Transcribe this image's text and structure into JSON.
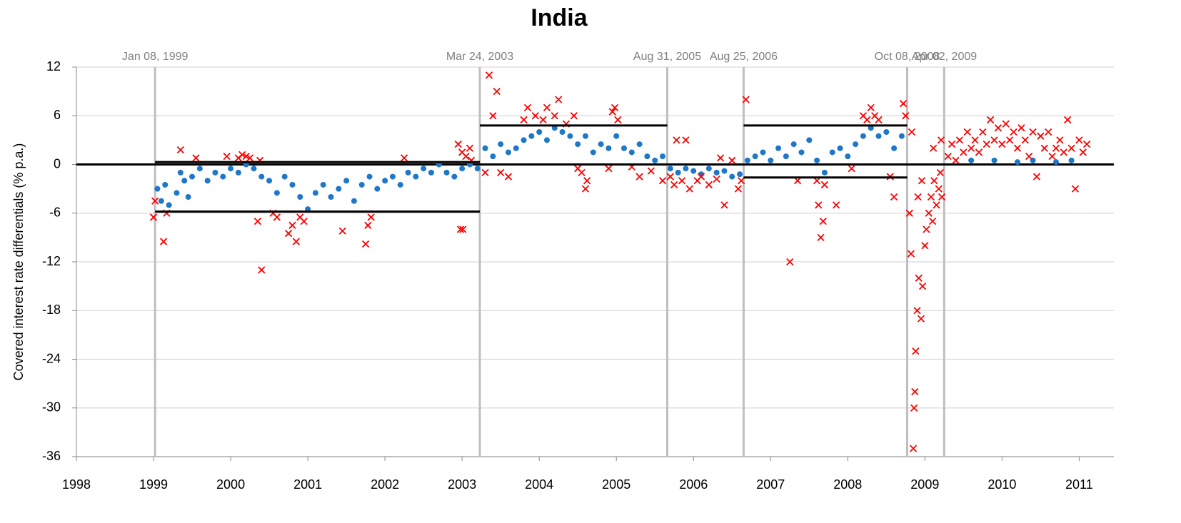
{
  "chart_data": {
    "type": "scatter",
    "title": "India",
    "y_label": "Covered interest rate differentials (% p.a.)",
    "xlim": [
      1998,
      2011.45
    ],
    "ylim": [
      -36,
      12
    ],
    "xticks": [
      1998,
      1999,
      2000,
      2001,
      2002,
      2003,
      2004,
      2005,
      2006,
      2007,
      2008,
      2009,
      2010,
      2011
    ],
    "yticks": [
      -36,
      -30,
      -24,
      -18,
      -12,
      -6,
      0,
      6,
      12
    ],
    "grid": true,
    "reference_line": 0,
    "breaks": [
      {
        "value": 1999.02,
        "label": "Jan 08, 1999"
      },
      {
        "value": 2003.23,
        "label": "Mar 24, 2003"
      },
      {
        "value": 2005.66,
        "label": "Aug 31, 2005"
      },
      {
        "value": 2006.65,
        "label": "Aug 25, 2006"
      },
      {
        "value": 2008.77,
        "label": "Oct 08, 2008"
      },
      {
        "value": 2009.25,
        "label": "Apr 02, 2009"
      }
    ],
    "thresholds": [
      {
        "x": [
          1999.02,
          2003.23
        ],
        "values": [
          0.3,
          -5.8
        ]
      },
      {
        "x": [
          2003.23,
          2005.66
        ],
        "values": [
          4.8,
          0
        ]
      },
      {
        "x": [
          2006.65,
          2008.77
        ],
        "values": [
          4.8,
          -1.6
        ]
      }
    ],
    "series": [
      {
        "color": "#1f77c8",
        "marker": "circle",
        "x": [
          1999.05,
          1999.1,
          1999.15,
          1999.2,
          1999.3,
          1999.35,
          1999.4,
          1999.45,
          1999.5,
          1999.6,
          1999.7,
          1999.8,
          1999.9,
          2000.0,
          2000.1,
          2000.2,
          2000.3,
          2000.4,
          2000.5,
          2000.6,
          2000.7,
          2000.8,
          2000.9,
          2001.0,
          2001.1,
          2001.2,
          2001.3,
          2001.4,
          2001.5,
          2001.6,
          2001.7,
          2001.8,
          2001.9,
          2002.0,
          2002.1,
          2002.2,
          2002.3,
          2002.4,
          2002.5,
          2002.6,
          2002.7,
          2002.8,
          2002.9,
          2003.0,
          2003.1,
          2003.2,
          2003.3,
          2003.4,
          2003.5,
          2003.6,
          2003.7,
          2003.8,
          2003.9,
          2004.0,
          2004.1,
          2004.2,
          2004.3,
          2004.4,
          2004.5,
          2004.6,
          2004.7,
          2004.8,
          2004.9,
          2005.0,
          2005.1,
          2005.2,
          2005.3,
          2005.4,
          2005.5,
          2005.6,
          2005.7,
          2005.8,
          2005.9,
          2006.0,
          2006.1,
          2006.2,
          2006.3,
          2006.4,
          2006.5,
          2006.6,
          2006.7,
          2006.8,
          2006.9,
          2007.0,
          2007.1,
          2007.2,
          2007.3,
          2007.4,
          2007.5,
          2007.6,
          2007.7,
          2007.8,
          2007.9,
          2008.0,
          2008.1,
          2008.2,
          2008.3,
          2008.4,
          2008.5,
          2008.6,
          2008.7,
          2009.6,
          2009.9,
          2010.2,
          2010.4,
          2010.7,
          2010.9
        ],
        "values": [
          -3,
          -4.5,
          -2.5,
          -5,
          -3.5,
          -1,
          -2,
          -4,
          -1.5,
          -0.5,
          -2,
          -1,
          -1.5,
          -0.5,
          -1,
          0,
          -0.5,
          -1.5,
          -2,
          -3.5,
          -1.5,
          -2.5,
          -4,
          -5.5,
          -3.5,
          -2.5,
          -4,
          -3,
          -2,
          -4.5,
          -2.5,
          -1.5,
          -3,
          -2,
          -1.5,
          -2.5,
          -1,
          -1.5,
          -0.5,
          -1,
          0,
          -1,
          -1.5,
          -0.5,
          0,
          -0.5,
          2,
          1,
          2.5,
          1.5,
          2,
          3,
          3.5,
          4,
          3,
          4.5,
          4,
          3.5,
          2.5,
          3.5,
          1.5,
          2.5,
          2,
          3.5,
          2,
          1.5,
          2.5,
          1,
          0.5,
          1,
          -0.5,
          -1,
          -0.5,
          -0.8,
          -1.2,
          -0.5,
          -1,
          -0.8,
          -1.5,
          -1.2,
          0.5,
          1,
          1.5,
          0.5,
          2,
          1,
          2.5,
          1.5,
          3,
          0.5,
          -1,
          1.5,
          2,
          1,
          2.5,
          3.5,
          4.5,
          3.5,
          4,
          2,
          3.5,
          0.5,
          0.5,
          0.3,
          0.5,
          0.3,
          0.5
        ]
      },
      {
        "color": "#ff0000",
        "marker": "x",
        "x": [
          1999.0,
          1999.02,
          1999.13,
          1999.17,
          1999.35,
          1999.55,
          1999.95,
          2000.1,
          2000.15,
          2000.2,
          2000.25,
          2000.35,
          2000.4,
          2000.38,
          2000.55,
          2000.6,
          2000.75,
          2000.8,
          2000.85,
          2000.9,
          2000.95,
          2001.45,
          2001.75,
          2001.78,
          2001.82,
          2002.25,
          2002.95,
          2003.0,
          2003.05,
          2003.1,
          2003.12,
          2002.98,
          2003.01,
          2003.3,
          2003.35,
          2003.4,
          2003.45,
          2003.5,
          2003.6,
          2003.8,
          2003.85,
          2003.95,
          2004.05,
          2004.1,
          2004.2,
          2004.25,
          2004.35,
          2004.45,
          2004.5,
          2004.55,
          2004.6,
          2004.62,
          2004.9,
          2004.95,
          2004.98,
          2005.02,
          2005.2,
          2005.3,
          2005.45,
          2005.6,
          2005.7,
          2005.75,
          2005.78,
          2005.85,
          2005.9,
          2005.95,
          2006.05,
          2006.1,
          2006.2,
          2006.3,
          2006.35,
          2006.4,
          2006.5,
          2006.58,
          2006.62,
          2006.68,
          2007.25,
          2007.35,
          2007.6,
          2007.62,
          2007.65,
          2007.68,
          2007.7,
          2007.85,
          2008.05,
          2008.2,
          2008.25,
          2008.3,
          2008.35,
          2008.4,
          2008.55,
          2008.6,
          2008.72,
          2008.75,
          2008.8,
          2008.82,
          2008.85,
          2008.86,
          2008.87,
          2008.88,
          2008.9,
          2008.92,
          2008.95,
          2008.97,
          2009.0,
          2009.02,
          2009.05,
          2009.08,
          2009.1,
          2009.12,
          2009.15,
          2009.18,
          2009.2,
          2009.22,
          2008.83,
          2008.91,
          2008.96,
          2009.11,
          2009.21,
          2009.3,
          2009.35,
          2009.4,
          2009.45,
          2009.5,
          2009.55,
          2009.6,
          2009.65,
          2009.7,
          2009.75,
          2009.8,
          2009.85,
          2009.9,
          2009.95,
          2010.0,
          2010.05,
          2010.1,
          2010.15,
          2010.2,
          2010.25,
          2010.3,
          2010.35,
          2010.4,
          2010.45,
          2010.5,
          2010.55,
          2010.6,
          2010.65,
          2010.7,
          2010.75,
          2010.8,
          2010.85,
          2010.9,
          2010.95,
          2011.0,
          2011.05,
          2011.1
        ],
        "values": [
          -6.5,
          -4.5,
          -9.5,
          -6,
          1.8,
          0.8,
          1,
          0.8,
          1.2,
          1,
          0.8,
          -7,
          -13,
          0.5,
          -6,
          -6.5,
          -8.5,
          -7.5,
          -9.5,
          -6.5,
          -7,
          -8.2,
          -9.8,
          -7.5,
          -6.5,
          0.8,
          2.5,
          1.5,
          1,
          2,
          0.5,
          -8,
          -8,
          -1,
          11,
          6,
          9,
          -1,
          -1.5,
          5.5,
          7,
          6,
          5.5,
          7,
          6,
          8,
          5,
          6,
          -0.5,
          -1,
          -3,
          -2,
          -0.5,
          6.5,
          7,
          5.5,
          -0.3,
          -1.5,
          -0.8,
          -2,
          -1.5,
          -2.5,
          3,
          -2,
          3,
          -3,
          -2,
          -1.5,
          -2.5,
          -1.8,
          0.8,
          -5,
          0.5,
          -3,
          -2,
          8,
          -12,
          -2,
          -2,
          -5,
          -9,
          -7,
          -2.5,
          -5,
          -0.5,
          6,
          5.5,
          7,
          6,
          5.5,
          -1.5,
          -4,
          7.5,
          6,
          -6,
          -11,
          -35,
          -30,
          -28,
          -23,
          -18,
          -14,
          -19,
          -15,
          -10,
          -8,
          -6,
          -4,
          -7,
          -2,
          -5,
          -3,
          -1,
          -4,
          4,
          -4,
          -2,
          2,
          3,
          1,
          2.5,
          0.5,
          3,
          1.5,
          4,
          2,
          3,
          1.5,
          4,
          2.5,
          5.5,
          3,
          4.5,
          2.5,
          5,
          3,
          4,
          2,
          4.5,
          3,
          1,
          4,
          -1.5,
          3.5,
          2,
          4,
          1,
          2,
          3,
          1.5,
          5.5,
          2,
          -3,
          3,
          1.5,
          2.5
        ]
      }
    ]
  }
}
